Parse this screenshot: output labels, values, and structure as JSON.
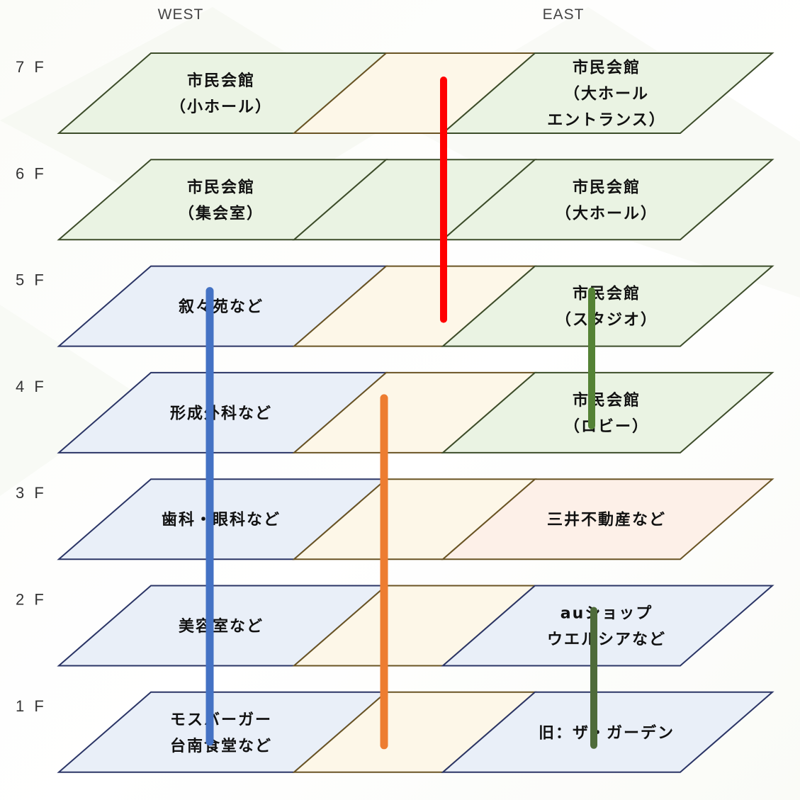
{
  "wings": {
    "west": "WEST",
    "east": "EAST"
  },
  "colors": {
    "green": "#eaf3e3",
    "blue": "#e9eff8",
    "cream": "#fdf7e8",
    "peach": "#fdf0e8",
    "edge_green": "#3d4d2a",
    "edge_blue": "#2b3566",
    "edge_cream": "#6a5424",
    "line_red": "#ff0000",
    "line_blue": "#4472c4",
    "line_orange": "#ed7d31",
    "line_green": "#548235",
    "line_darkgreen": "#4e6b3a"
  },
  "floors": [
    {
      "label": "7 F",
      "west": {
        "lines": [
          "市民会館",
          "（小ホール）"
        ],
        "fill": "green"
      },
      "mid": {
        "fill": "cream"
      },
      "east": {
        "lines": [
          "市民会館",
          "（大ホール",
          "エントランス）"
        ],
        "fill": "green"
      }
    },
    {
      "label": "6 F",
      "west": {
        "lines": [
          "市民会館",
          "（集会室）"
        ],
        "fill": "green"
      },
      "mid": {
        "fill": "green"
      },
      "east": {
        "lines": [
          "市民会館",
          "（大ホール）"
        ],
        "fill": "green"
      }
    },
    {
      "label": "5 F",
      "west": {
        "lines": [
          "叙々苑など"
        ],
        "fill": "blue"
      },
      "mid": {
        "fill": "cream"
      },
      "east": {
        "lines": [
          "市民会館",
          "（スタジオ）"
        ],
        "fill": "green"
      }
    },
    {
      "label": "4 F",
      "west": {
        "lines": [
          "形成外科など"
        ],
        "fill": "blue"
      },
      "mid": {
        "fill": "cream"
      },
      "east": {
        "lines": [
          "市民会館",
          "（ロビー）"
        ],
        "fill": "green"
      }
    },
    {
      "label": "3 F",
      "west": {
        "lines": [
          "歯科・眼科など"
        ],
        "fill": "blue"
      },
      "mid": {
        "fill": "cream"
      },
      "east": {
        "lines": [
          "三井不動産など"
        ],
        "fill": "peach"
      }
    },
    {
      "label": "2 F",
      "west": {
        "lines": [
          "美容室など"
        ],
        "fill": "blue"
      },
      "mid": {
        "fill": "cream"
      },
      "east": {
        "lines": [
          "auショップ",
          "ウエルシアなど"
        ],
        "fill": "blue"
      }
    },
    {
      "label": "1 F",
      "west": {
        "lines": [
          "モスバーガー",
          "台南食堂など"
        ],
        "fill": "blue"
      },
      "mid": {
        "fill": "cream"
      },
      "east": {
        "lines": [
          "旧：ザ・ガーデン"
        ],
        "fill": "blue"
      }
    }
  ],
  "connectors": [
    {
      "name": "red-elevator-line",
      "color": "line_red",
      "from_floor": "7 F",
      "to_floor": "5 F"
    },
    {
      "name": "blue-elevator-line",
      "color": "line_blue",
      "from_floor": "5 F",
      "to_floor": "1 F"
    },
    {
      "name": "orange-escalator-line",
      "color": "line_orange",
      "from_floor": "4 F",
      "to_floor": "1 F"
    },
    {
      "name": "green-elevator-line",
      "color": "line_green",
      "from_floor": "5 F",
      "to_floor": "4 F"
    },
    {
      "name": "darkgreen-elevator-line",
      "color": "line_darkgreen",
      "from_floor": "2 F",
      "to_floor": "1 F"
    }
  ]
}
